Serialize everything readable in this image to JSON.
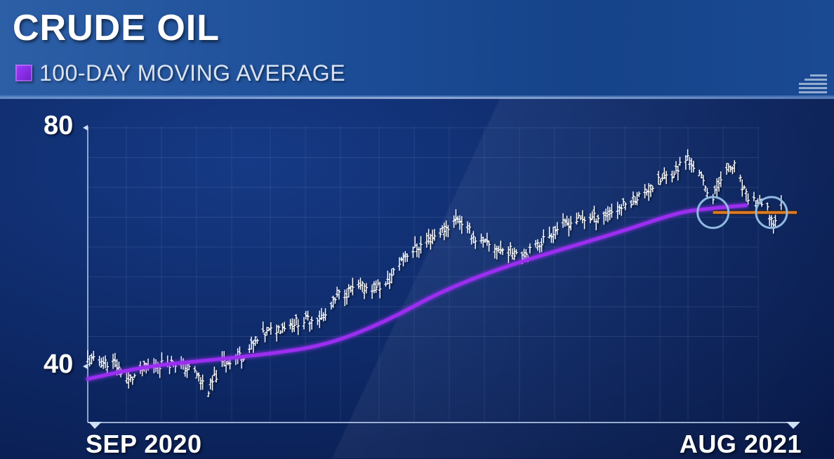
{
  "header": {
    "title": "CRUDE OIL",
    "legend_label": "100-DAY MOVING AVERAGE"
  },
  "colors": {
    "moving_average": "#9b2ff0",
    "support_line": "#e07a20",
    "highlight_circle": "#8fb8e0",
    "bars": "#ffffff"
  },
  "chart_data": {
    "type": "line",
    "title": "CRUDE OIL",
    "ylim": [
      33,
      83
    ],
    "yticks": [
      40,
      80
    ],
    "ytick_labels": [
      "40",
      "80"
    ],
    "xlim": [
      "2020-09-01",
      "2021-08-31"
    ],
    "xtick_labels": [
      "SEP 2020",
      "AUG 2021"
    ],
    "grid": true,
    "legend": "top-left",
    "price_bars": {
      "name": "",
      "x": [
        "2020-09-01",
        "2020-09-15",
        "2020-09-22",
        "2020-10-01",
        "2020-10-15",
        "2020-10-26",
        "2020-11-02",
        "2020-11-09",
        "2020-11-20",
        "2020-12-01",
        "2020-12-15",
        "2021-01-01",
        "2021-01-08",
        "2021-01-20",
        "2021-02-01",
        "2021-02-10",
        "2021-02-20",
        "2021-03-05",
        "2021-03-10",
        "2021-03-20",
        "2021-04-01",
        "2021-04-15",
        "2021-05-01",
        "2021-05-10",
        "2021-05-20",
        "2021-06-01",
        "2021-06-15",
        "2021-06-30",
        "2021-07-06",
        "2021-07-12",
        "2021-07-19",
        "2021-07-23",
        "2021-07-30",
        "2021-08-05",
        "2021-08-11",
        "2021-08-16",
        "2021-08-19",
        "2021-08-23"
      ],
      "y": [
        41.0,
        40.5,
        37.5,
        40.0,
        40.7,
        39.0,
        36.0,
        40.5,
        42.0,
        45.5,
        47.3,
        48.5,
        52.0,
        53.2,
        53.5,
        58.5,
        60.5,
        63.5,
        65.0,
        61.0,
        59.5,
        59.0,
        63.5,
        64.5,
        65.0,
        66.5,
        69.5,
        73.0,
        75.0,
        72.0,
        68.0,
        72.0,
        73.5,
        68.5,
        67.5,
        66.0,
        64.0,
        67.0
      ]
    },
    "series": [
      {
        "name": "100-DAY MOVING AVERAGE",
        "x": [
          "2020-09-01",
          "2020-10-01",
          "2020-11-01",
          "2020-12-01",
          "2021-01-01",
          "2021-02-01",
          "2021-03-01",
          "2021-04-01",
          "2021-05-01",
          "2021-06-01",
          "2021-07-01",
          "2021-07-15",
          "2021-08-05"
        ],
        "y": [
          37.9,
          40.0,
          41.0,
          42.0,
          43.5,
          47.5,
          52.5,
          56.5,
          59.5,
          62.5,
          65.8,
          66.4,
          67.0
        ]
      }
    ],
    "annotations": {
      "support_level": 65.8,
      "support_from": "2021-07-19",
      "circles": [
        "2021-07-19",
        "2021-08-18"
      ]
    }
  }
}
